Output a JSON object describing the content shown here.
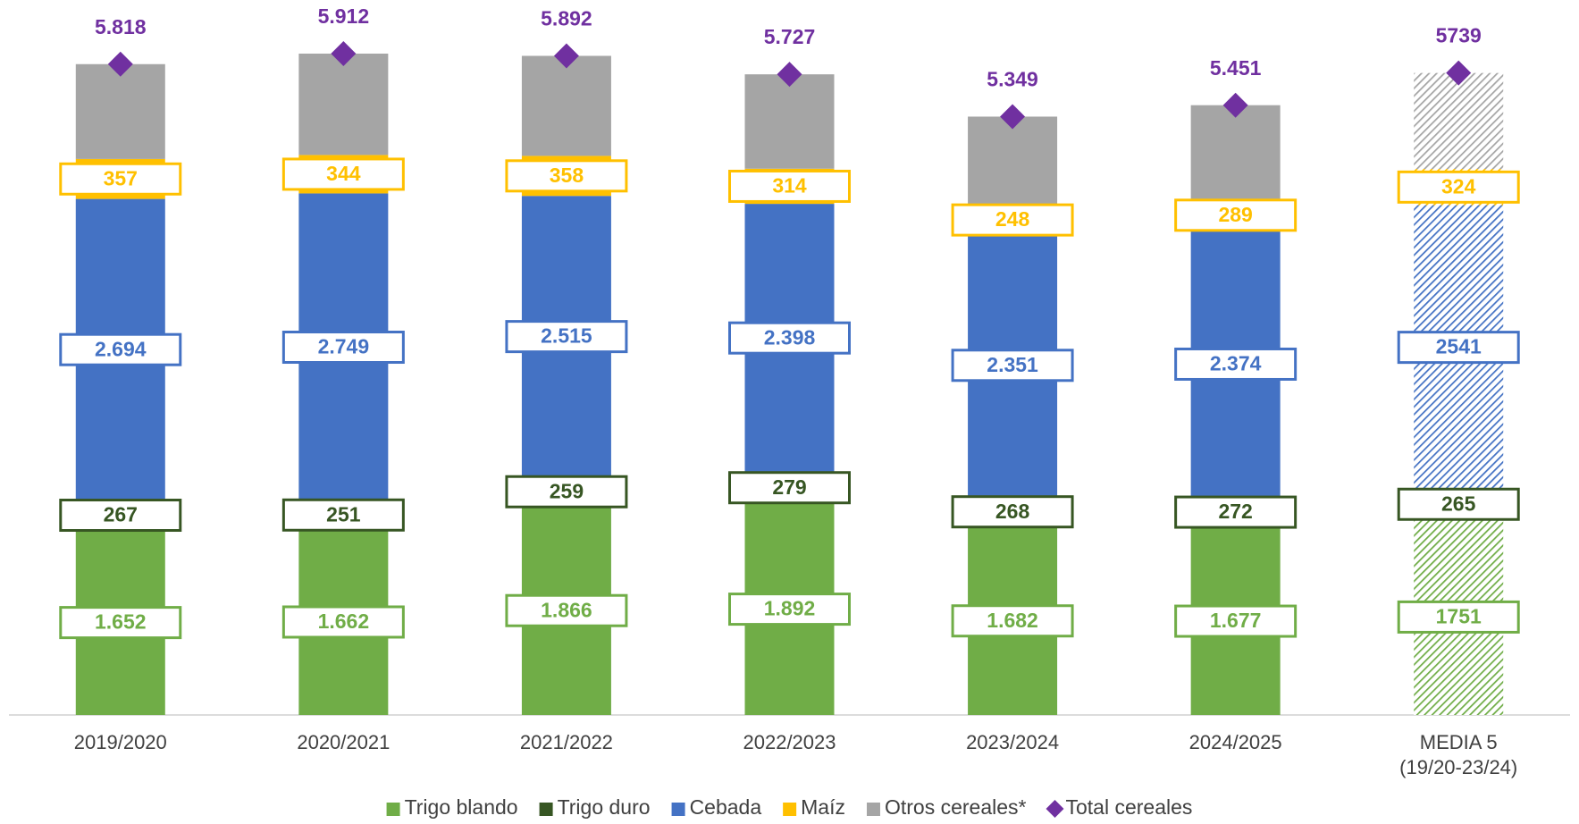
{
  "chart_data": {
    "type": "bar",
    "stacked": true,
    "categories": [
      "2019/2020",
      "2020/2021",
      "2021/2022",
      "2022/2023",
      "2023/2024",
      "2024/2025",
      "MEDIA 5\n(19/20-23/24)"
    ],
    "series": [
      {
        "name": "Trigo blando",
        "color": "#70ad47",
        "values": [
          1652,
          1662,
          1866,
          1892,
          1682,
          1677,
          1751
        ],
        "value_labels": [
          "1.652",
          "1.662",
          "1.866",
          "1.892",
          "1.682",
          "1.677",
          "1751"
        ]
      },
      {
        "name": "Trigo duro",
        "color": "#375623",
        "values": [
          267,
          251,
          259,
          279,
          268,
          272,
          265
        ]
      },
      {
        "name": "Cebada",
        "color": "#4472c4",
        "values": [
          2694,
          2749,
          2515,
          2398,
          2351,
          2374,
          2541
        ],
        "value_labels": [
          "2.694",
          "2.749",
          "2.515",
          "2.398",
          "2.351",
          "2.374",
          "2541"
        ]
      },
      {
        "name": "Maíz",
        "color": "#ffc000",
        "values": [
          357,
          344,
          358,
          314,
          248,
          289,
          324
        ]
      },
      {
        "name": "Otros cereales*",
        "color": "#a5a5a5",
        "values": [
          848,
          906,
          894,
          844,
          800,
          839,
          858
        ]
      },
      {
        "name": "Total cereales",
        "type": "scatter",
        "marker": "diamond",
        "color": "#7030a0",
        "values": [
          5818,
          5912,
          5892,
          5727,
          5349,
          5451,
          5739
        ],
        "value_labels": [
          "5.818",
          "5.912",
          "5.892",
          "5.727",
          "5.349",
          "5.451",
          "5739"
        ]
      }
    ],
    "labeled_series": [
      0,
      1,
      2,
      3,
      5
    ],
    "legend": "bottom"
  }
}
